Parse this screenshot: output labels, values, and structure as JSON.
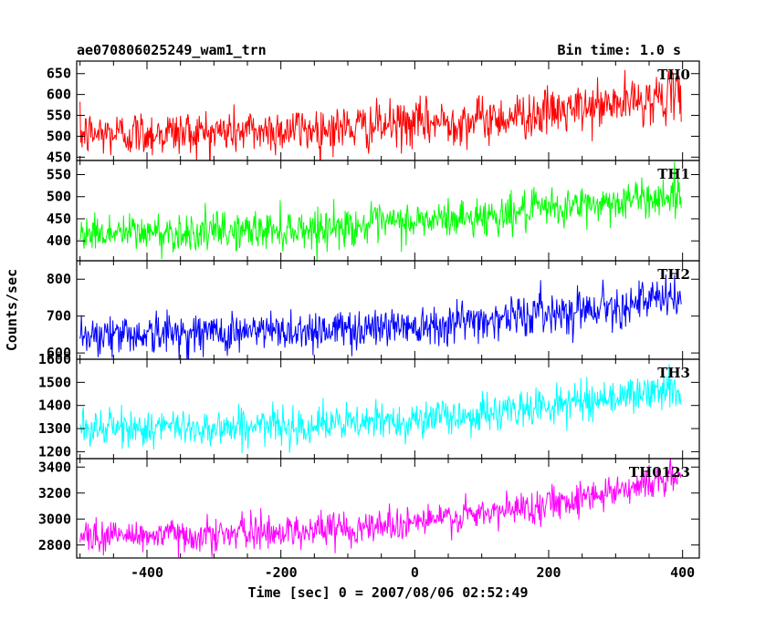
{
  "header": {
    "title": "ae070806025249_wam1_trn",
    "bin_time": "Bin time: 1.0 s"
  },
  "chart_data": {
    "type": "line",
    "title": "ae070806025249_wam1_trn",
    "subtitle": "Bin time: 1.0 s",
    "xlabel": "Time [sec] 0 = 2007/08/06 02:52:49",
    "ylabel": "Counts/sec",
    "xlim": [
      -505,
      425
    ],
    "x_ticks": [
      -400,
      -200,
      0,
      200,
      400
    ],
    "x_sample_start": -500,
    "x_sample_end": 398,
    "x_sample_step": 1,
    "grid": false,
    "legend": "none",
    "panels": [
      {
        "name": "TH0",
        "color": "#ff0000",
        "ylim": [
          442,
          680
        ],
        "y_ticks": [
          450,
          500,
          550,
          600,
          650
        ],
        "trend": [
          [
            -500,
            505
          ],
          [
            -300,
            510
          ],
          [
            -100,
            520
          ],
          [
            100,
            540
          ],
          [
            250,
            565
          ],
          [
            398,
            600
          ]
        ],
        "noise_sd": 28
      },
      {
        "name": "TH1",
        "color": "#00ff00",
        "ylim": [
          355,
          582
        ],
        "y_ticks": [
          400,
          450,
          500,
          550
        ],
        "trend": [
          [
            -500,
            418
          ],
          [
            -300,
            420
          ],
          [
            -100,
            432
          ],
          [
            100,
            455
          ],
          [
            250,
            480
          ],
          [
            398,
            505
          ]
        ],
        "noise_sd": 22
      },
      {
        "name": "TH2",
        "color": "#0000ff",
        "ylim": [
          583,
          850
        ],
        "y_ticks": [
          600,
          700,
          800
        ],
        "trend": [
          [
            -500,
            650
          ],
          [
            -300,
            655
          ],
          [
            -100,
            665
          ],
          [
            100,
            690
          ],
          [
            250,
            720
          ],
          [
            398,
            750
          ]
        ],
        "noise_sd": 28
      },
      {
        "name": "TH3",
        "color": "#00ffff",
        "ylim": [
          1170,
          1600
        ],
        "y_ticks": [
          1200,
          1300,
          1400,
          1500,
          1600
        ],
        "trend": [
          [
            -500,
            1300
          ],
          [
            -300,
            1305
          ],
          [
            -100,
            1320
          ],
          [
            100,
            1360
          ],
          [
            250,
            1420
          ],
          [
            398,
            1470
          ]
        ],
        "noise_sd": 40
      },
      {
        "name": "TH0123",
        "color": "#ff00ff",
        "ylim": [
          2700,
          3465
        ],
        "y_ticks": [
          2800,
          3000,
          3200,
          3400
        ],
        "trend": [
          [
            -500,
            2870
          ],
          [
            -300,
            2880
          ],
          [
            -100,
            2930
          ],
          [
            100,
            3030
          ],
          [
            250,
            3170
          ],
          [
            398,
            3330
          ]
        ],
        "noise_sd": 65
      }
    ]
  }
}
